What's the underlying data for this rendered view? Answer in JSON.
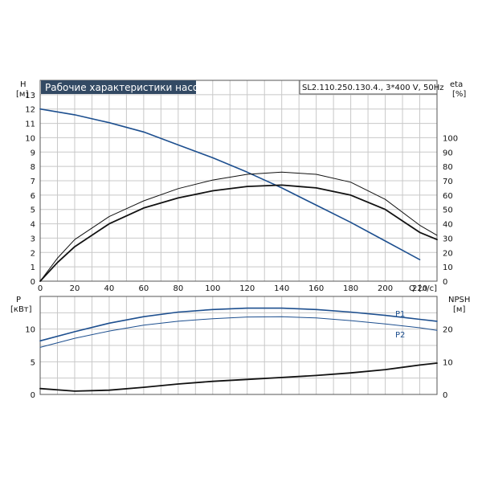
{
  "chart_data": [
    {
      "type": "line",
      "title": "Рабочие характеристики насоса",
      "subtitle": "SL2.110.250.130.4., 3*400 V, 50Hz",
      "ylabel": "H",
      "yunit": "[м]",
      "y2label": "eta",
      "y2unit": "[%]",
      "xlabel": "Q",
      "xunit": "[л/с]",
      "xlim": [
        0,
        230
      ],
      "ylim": [
        0,
        14
      ],
      "y2lim": [
        0,
        140
      ],
      "xticks": [
        0,
        20,
        40,
        60,
        80,
        100,
        120,
        140,
        160,
        180,
        200,
        220
      ],
      "yticks": [
        0,
        1,
        2,
        3,
        4,
        5,
        6,
        7,
        8,
        9,
        10,
        11,
        12,
        13
      ],
      "y2ticks": [
        0,
        10,
        20,
        30,
        40,
        50,
        60,
        70,
        80,
        90,
        100
      ],
      "grid": true,
      "series": [
        {
          "axis": "left",
          "color": "#1d4f8f",
          "points": [
            [
              0,
              12.0
            ],
            [
              20,
              11.6
            ],
            [
              40,
              11.05
            ],
            [
              60,
              10.4
            ],
            [
              80,
              9.5
            ],
            [
              100,
              8.6
            ],
            [
              120,
              7.6
            ],
            [
              140,
              6.5
            ],
            [
              160,
              5.3
            ],
            [
              180,
              4.1
            ],
            [
              200,
              2.8
            ],
            [
              220,
              1.5
            ]
          ]
        },
        {
          "axis": "right",
          "color": "#111111",
          "points": [
            [
              0,
              0
            ],
            [
              10,
              16
            ],
            [
              20,
              29
            ],
            [
              40,
              45
            ],
            [
              60,
              56
            ],
            [
              80,
              64.5
            ],
            [
              100,
              70.5
            ],
            [
              120,
              74.5
            ],
            [
              140,
              76
            ],
            [
              160,
              74.5
            ],
            [
              180,
              69
            ],
            [
              200,
              57
            ],
            [
              220,
              39
            ],
            [
              230,
              32
            ]
          ]
        },
        {
          "axis": "right",
          "color": "#111111",
          "points": [
            [
              0,
              0
            ],
            [
              10,
              13
            ],
            [
              20,
              24
            ],
            [
              40,
              40
            ],
            [
              60,
              51
            ],
            [
              80,
              58
            ],
            [
              100,
              63
            ],
            [
              120,
              66
            ],
            [
              140,
              67
            ],
            [
              160,
              65
            ],
            [
              180,
              60
            ],
            [
              200,
              50
            ],
            [
              220,
              34
            ],
            [
              230,
              29
            ]
          ]
        }
      ]
    },
    {
      "type": "line",
      "ylabel": "P",
      "yunit": "[кВт]",
      "y2label": "NPSH",
      "y2unit": "[м]",
      "xlim": [
        0,
        230
      ],
      "ylim": [
        0,
        15
      ],
      "y2lim": [
        0,
        30
      ],
      "yticks": [
        0,
        5,
        10
      ],
      "y2ticks": [
        0,
        10,
        20
      ],
      "grid": true,
      "series": [
        {
          "name": "P1",
          "axis": "left",
          "color": "#1d4f8f",
          "points": [
            [
              0,
              8.2
            ],
            [
              20,
              9.6
            ],
            [
              40,
              10.9
            ],
            [
              60,
              11.9
            ],
            [
              80,
              12.6
            ],
            [
              100,
              13.0
            ],
            [
              120,
              13.2
            ],
            [
              140,
              13.2
            ],
            [
              160,
              13.0
            ],
            [
              180,
              12.6
            ],
            [
              200,
              12.1
            ],
            [
              220,
              11.5
            ],
            [
              230,
              11.2
            ]
          ]
        },
        {
          "name": "P2",
          "axis": "left",
          "color": "#1d4f8f",
          "points": [
            [
              0,
              7.2
            ],
            [
              20,
              8.6
            ],
            [
              40,
              9.7
            ],
            [
              60,
              10.6
            ],
            [
              80,
              11.2
            ],
            [
              100,
              11.6
            ],
            [
              120,
              11.85
            ],
            [
              140,
              11.9
            ],
            [
              160,
              11.7
            ],
            [
              180,
              11.3
            ],
            [
              200,
              10.8
            ],
            [
              220,
              10.2
            ],
            [
              230,
              9.8
            ]
          ]
        },
        {
          "axis": "right",
          "color": "#111111",
          "points": [
            [
              0,
              1.8
            ],
            [
              20,
              1.0
            ],
            [
              40,
              1.3
            ],
            [
              60,
              2.2
            ],
            [
              80,
              3.2
            ],
            [
              100,
              4.0
            ],
            [
              120,
              4.6
            ],
            [
              140,
              5.2
            ],
            [
              160,
              5.8
            ],
            [
              180,
              6.6
            ],
            [
              200,
              7.6
            ],
            [
              220,
              9.0
            ],
            [
              230,
              9.6
            ]
          ]
        }
      ]
    }
  ]
}
